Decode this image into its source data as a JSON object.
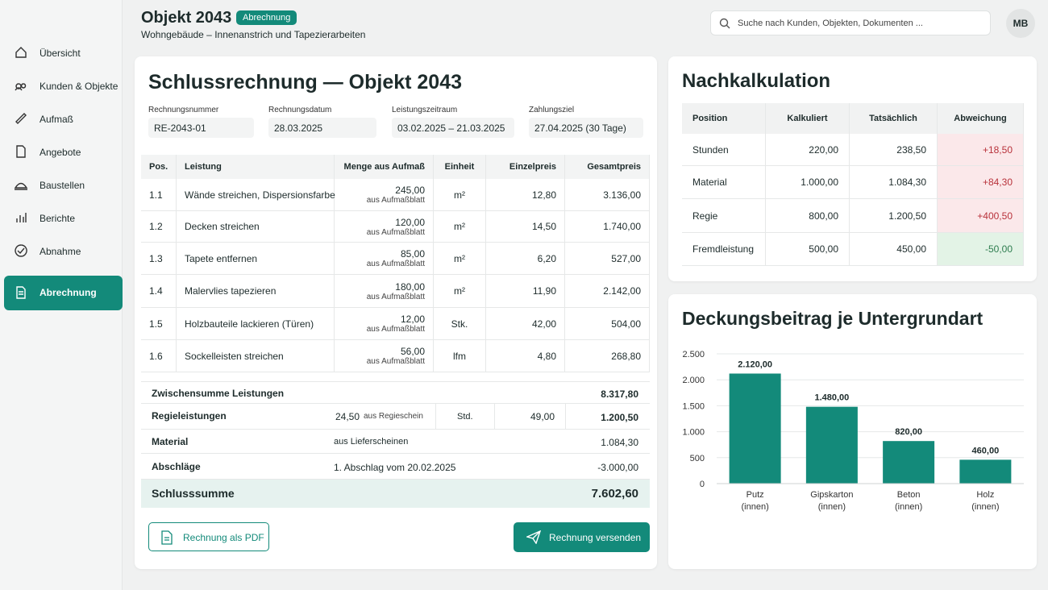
{
  "header": {
    "title": "Objekt 2043",
    "badge": "Abrechnung",
    "subtitle": "Wohngebäude – Innenanstrich und Tapezierarbeiten",
    "search_placeholder": "Suche nach Kunden, Objekten, Dokumenten ...",
    "avatar": "MB"
  },
  "nav": {
    "items": [
      "Übersicht",
      "Kunden & Objekte",
      "Aufmaß",
      "Angebote",
      "Baustellen",
      "Berichte",
      "Abnahme",
      "Abrechnung"
    ],
    "active": 7
  },
  "invoice": {
    "title": "Schlussrechnung — Objekt 2043",
    "fields": [
      {
        "label": "Rechnungsnummer",
        "value": "RE-2043-01"
      },
      {
        "label": "Rechnungsdatum",
        "value": "28.03.2025"
      },
      {
        "label": "Leistungszeitraum",
        "value": "03.02.2025 – 21.03.2025"
      },
      {
        "label": "Zahlungsziel",
        "value": "27.04.2025 (30 Tage)"
      }
    ],
    "headers": [
      "Pos.",
      "Leistung",
      "Menge aus Aufmaß",
      "Einheit",
      "Einzelpreis",
      "Gesamtpreis"
    ],
    "rows": [
      {
        "pos": "1.1",
        "leistung": "Wände streichen, Dispersionsfarbe",
        "menge": "245,00",
        "note": "aus Aufmaßblatt",
        "einheit": "m²",
        "einzelpreis": "12,80",
        "gesamtpreis": "3.136,00"
      },
      {
        "pos": "1.2",
        "leistung": "Decken streichen",
        "menge": "120,00",
        "note": "aus Aufmaßblatt",
        "einheit": "m²",
        "einzelpreis": "14,50",
        "gesamtpreis": "1.740,00"
      },
      {
        "pos": "1.3",
        "leistung": "Tapete entfernen",
        "menge": "85,00",
        "note": "aus Aufmaßblatt",
        "einheit": "m²",
        "einzelpreis": "6,20",
        "gesamtpreis": "527,00"
      },
      {
        "pos": "1.4",
        "leistung": "Malervlies tapezieren",
        "menge": "180,00",
        "note": "aus Aufmaßblatt",
        "einheit": "m²",
        "einzelpreis": "11,90",
        "gesamtpreis": "2.142,00"
      },
      {
        "pos": "1.5",
        "leistung": "Holzbauteile lackieren (Türen)",
        "menge": "12,00",
        "note": "aus Aufmaßblatt",
        "einheit": "Stk.",
        "einzelpreis": "42,00",
        "gesamtpreis": "504,00"
      },
      {
        "pos": "1.6",
        "leistung": "Sockelleisten streichen",
        "menge": "56,00",
        "note": "aus Aufmaßblatt",
        "einheit": "lfm",
        "einzelpreis": "4,80",
        "gesamtpreis": "268,80"
      }
    ],
    "subtotal": {
      "label": "Zwischensumme Leistungen",
      "total": "8.317,80"
    },
    "regie": {
      "label": "Regieleistungen",
      "menge": "24,50",
      "note": "aus Regieschein",
      "einheit": "Std.",
      "einzelpreis": "49,00",
      "total": "1.200,50"
    },
    "material": {
      "label": "Material",
      "note": "aus Lieferscheinen",
      "total": "1.084,30"
    },
    "abschlaege": {
      "label": "Abschläge",
      "note": "1. Abschlag vom 20.02.2025",
      "total": "-3.000,00"
    },
    "final": {
      "label": "Schlusssumme",
      "total": "7.602,60"
    },
    "buttons": {
      "pdf": "Rechnung als PDF",
      "send": "Rechnung versenden"
    }
  },
  "nachkalkulation": {
    "title": "Nachkalkulation",
    "headers": [
      "Position",
      "Kalkuliert",
      "Tatsächlich",
      "Abweichung"
    ],
    "rows": [
      [
        "Stunden",
        "220,00",
        "238,50",
        "+18,50"
      ],
      [
        "Material",
        "1.000,00",
        "1.084,30",
        "+84,30"
      ],
      [
        "Regie",
        "800,00",
        "1.200,50",
        "+400,50"
      ],
      [
        "Fremdleistung",
        "500,00",
        "450,00",
        "-50,00"
      ]
    ]
  },
  "chart_data": {
    "type": "bar",
    "title": "Deckungsbeitrag je Untergrundart",
    "categories": [
      [
        "Putz",
        "(innen)"
      ],
      [
        "Gipskarton",
        "(innen)"
      ],
      [
        "Beton",
        "(innen)"
      ],
      [
        "Holz",
        "(innen)"
      ]
    ],
    "values": [
      2120,
      1480,
      820,
      460
    ],
    "value_labels": [
      "2.120,00",
      "1.480,00",
      "820,00",
      "460,00"
    ],
    "color": "#138a7a",
    "ylim": [
      0,
      2500
    ],
    "yticks": [
      0,
      500,
      {
        "value": 1000,
        "label": "1.000"
      },
      {
        "value": 1500,
        "label": "1.500"
      },
      {
        "value": 2000,
        "label": "2.000"
      },
      {
        "value": 2500,
        "label": "2.500"
      }
    ],
    "grid": true
  }
}
